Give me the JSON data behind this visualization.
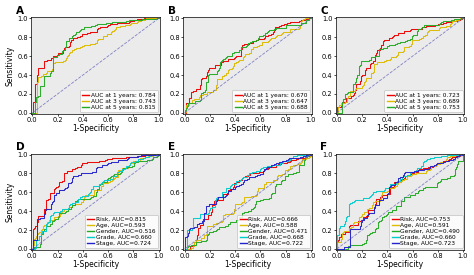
{
  "panels": [
    "A",
    "B",
    "C",
    "D",
    "E",
    "F"
  ],
  "top_panels": {
    "A": {
      "curves": [
        {
          "label": "AUC at 1 years: 0.784",
          "color": "#EE0000",
          "auc": 0.784,
          "seed": 10
        },
        {
          "label": "AUC at 3 years: 0.743",
          "color": "#DDBB00",
          "auc": 0.743,
          "seed": 20
        },
        {
          "label": "AUC at 5 years: 0.815",
          "color": "#22AA22",
          "auc": 0.815,
          "seed": 30
        }
      ]
    },
    "B": {
      "curves": [
        {
          "label": "AUC at 1 years: 0.670",
          "color": "#EE0000",
          "auc": 0.67,
          "seed": 40
        },
        {
          "label": "AUC at 3 years: 0.647",
          "color": "#DDBB00",
          "auc": 0.647,
          "seed": 50
        },
        {
          "label": "AUC at 5 years: 0.688",
          "color": "#22AA22",
          "auc": 0.688,
          "seed": 60
        }
      ]
    },
    "C": {
      "curves": [
        {
          "label": "AUC at 1 years: 0.723",
          "color": "#EE0000",
          "auc": 0.723,
          "seed": 70
        },
        {
          "label": "AUC at 3 years: 0.689",
          "color": "#DDBB00",
          "auc": 0.689,
          "seed": 80
        },
        {
          "label": "AUC at 5 years: 0.753",
          "color": "#22AA22",
          "auc": 0.753,
          "seed": 90
        }
      ]
    }
  },
  "bottom_panels": {
    "D": {
      "curves": [
        {
          "label": "Risk, AUC=0.815",
          "color": "#EE0000",
          "auc": 0.815,
          "seed": 100
        },
        {
          "label": "Age, AUC=0.593",
          "color": "#DDBB00",
          "auc": 0.593,
          "seed": 110
        },
        {
          "label": "Gender, AUC=0.516",
          "color": "#22AA22",
          "auc": 0.516,
          "seed": 120
        },
        {
          "label": "Grade, AUC=0.660",
          "color": "#00CCCC",
          "auc": 0.66,
          "seed": 130
        },
        {
          "label": "Stage, AUC=0.724",
          "color": "#2222CC",
          "auc": 0.724,
          "seed": 140
        }
      ]
    },
    "E": {
      "curves": [
        {
          "label": "Risk, AUC=0.666",
          "color": "#EE0000",
          "auc": 0.666,
          "seed": 150
        },
        {
          "label": "Age, AUC=0.588",
          "color": "#DDBB00",
          "auc": 0.588,
          "seed": 160
        },
        {
          "label": "Gender, AUC=0.471",
          "color": "#22AA22",
          "auc": 0.471,
          "seed": 170
        },
        {
          "label": "Grade, AUC=0.668",
          "color": "#00CCCC",
          "auc": 0.668,
          "seed": 180
        },
        {
          "label": "Stage, AUC=0.722",
          "color": "#2222CC",
          "auc": 0.722,
          "seed": 190
        }
      ]
    },
    "F": {
      "curves": [
        {
          "label": "Risk, AUC=0.753",
          "color": "#EE0000",
          "auc": 0.753,
          "seed": 200
        },
        {
          "label": "Age, AUC=0.591",
          "color": "#DDBB00",
          "auc": 0.591,
          "seed": 210
        },
        {
          "label": "Gender, AUC=0.490",
          "color": "#22AA22",
          "auc": 0.49,
          "seed": 220
        },
        {
          "label": "Grade, AUC=0.660",
          "color": "#00CCCC",
          "auc": 0.66,
          "seed": 230
        },
        {
          "label": "Stage, AUC=0.723",
          "color": "#2222CC",
          "auc": 0.723,
          "seed": 240
        }
      ]
    }
  },
  "xlabel": "1-Specificity",
  "ylabel": "Sensitivity",
  "bg_color": "#EBEBEB",
  "legend_fontsize": 4.2,
  "label_fontsize": 5.5,
  "tick_fontsize": 4.8,
  "panel_label_fontsize": 7.5
}
